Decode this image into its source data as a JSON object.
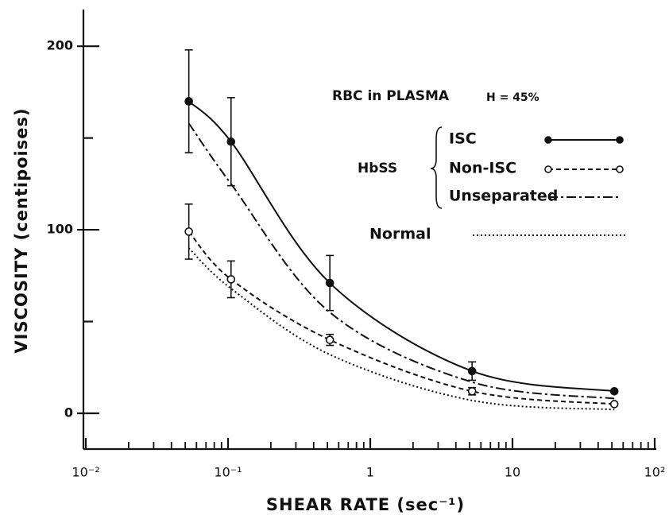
{
  "chart_data": {
    "type": "line",
    "x_label": "SHEAR RATE (sec⁻¹)",
    "y_label": "VISCOSITY (centipoises)",
    "legend_title": "RBC in PLASMA",
    "annotation": "H = 45%",
    "legend_group": "HbSS",
    "x_log": true,
    "xlim": [
      0.01,
      100
    ],
    "xticks": [
      {
        "value": 0.01,
        "label": "10⁻²"
      },
      {
        "value": 0.1,
        "label": "10⁻¹"
      },
      1,
      10,
      {
        "value": 100,
        "label": "10²"
      }
    ],
    "xminor_ticks": [
      0.02,
      0.03,
      0.04,
      0.05,
      0.06,
      0.07,
      0.08,
      0.09,
      0.2,
      0.3,
      0.4,
      0.5,
      0.6,
      0.7,
      0.8,
      0.9,
      2,
      3,
      4,
      5,
      6,
      7,
      8,
      9,
      20,
      30,
      40,
      50,
      60,
      70,
      80,
      90
    ],
    "ylim": [
      -19.5,
      220
    ],
    "yticks": [
      0,
      100,
      200
    ],
    "yminor_ticks": [
      50,
      150
    ],
    "x": [
      0.053,
      0.105,
      0.52,
      5.2,
      52
    ],
    "series": [
      {
        "name": "ISC",
        "color": "#111",
        "dash": "solid",
        "marker": "filled",
        "values": [
          170,
          148,
          71,
          23,
          12
        ],
        "errors": [
          28,
          24,
          15,
          5,
          null
        ]
      },
      {
        "name": "Non-ISC",
        "color": "#111",
        "dash": "dashed",
        "marker": "open",
        "values": [
          99,
          73,
          40,
          12,
          5
        ],
        "errors": [
          15,
          10,
          3,
          2,
          null
        ]
      },
      {
        "name": "Unseparated",
        "color": "#111",
        "dash": "dashdot",
        "values": [
          158,
          125,
          55,
          17,
          8
        ]
      },
      {
        "name": "Normal",
        "color": "#111",
        "dash": "dotted",
        "values": [
          90,
          68,
          32,
          7,
          2
        ]
      }
    ]
  }
}
